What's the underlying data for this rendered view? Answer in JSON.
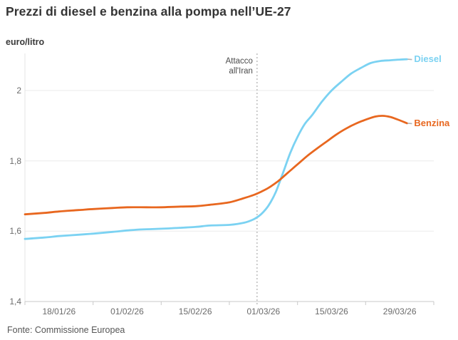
{
  "header": {
    "title": "Prezzi di diesel e benzina alla pompa nell’UE-27",
    "unit_label": "euro/litro"
  },
  "source": {
    "label": "Fonte: Commissione Europea"
  },
  "colors": {
    "diesel": "#7bd2f2",
    "benzina": "#e8671f",
    "grid": "#ebebeb",
    "axis_bottom": "#c9c9c9",
    "axis_left": "#e4e4e4",
    "tick_mark": "#c9c9c9",
    "tick_text": "#6b6b6b",
    "event_line": "#9b9b9b",
    "annotation_text": "#4c4c4c",
    "leader": "#b3b3b3",
    "title_text": "#343434",
    "source_text": "#565656"
  },
  "chart_data": {
    "type": "line",
    "title": "Prezzi di diesel e benzina alla pompa nell’UE-27",
    "ylabel": "euro/litro",
    "xlabel": "",
    "grid": "horizontal-only",
    "legend_position": "line-end-labels",
    "ylim": [
      1.4,
      2.105
    ],
    "x_domain_days": [
      0,
      84
    ],
    "x_tick_labels": [
      "18/01/26",
      "01/02/26",
      "15/02/26",
      "01/03/26",
      "15/03/26",
      "29/03/26"
    ],
    "x_tick_label_days": [
      7,
      21,
      35,
      49,
      63,
      77
    ],
    "x_axis_tick_days": [
      0,
      14,
      28,
      42,
      56,
      70,
      84
    ],
    "y_ticks": [
      {
        "label": "2",
        "value": 2.0
      },
      {
        "label": "1,8",
        "value": 1.8
      },
      {
        "label": "1,6",
        "value": 1.6
      },
      {
        "label": "1,4",
        "value": 1.4
      }
    ],
    "event": {
      "day": 47.7,
      "label": "Attacco all’Iran",
      "line1": "Attacco",
      "line2": "all'Iran"
    },
    "series": [
      {
        "name": "Diesel",
        "color": "#7bd2f2",
        "points": [
          [
            0,
            1.578
          ],
          [
            4,
            1.582
          ],
          [
            7,
            1.586
          ],
          [
            11,
            1.59
          ],
          [
            14,
            1.593
          ],
          [
            18,
            1.598
          ],
          [
            21,
            1.602
          ],
          [
            24,
            1.605
          ],
          [
            28,
            1.607
          ],
          [
            31,
            1.609
          ],
          [
            35,
            1.612
          ],
          [
            38,
            1.616
          ],
          [
            42,
            1.618
          ],
          [
            45,
            1.624
          ],
          [
            47,
            1.634
          ],
          [
            48.5,
            1.648
          ],
          [
            50,
            1.672
          ],
          [
            51.5,
            1.71
          ],
          [
            53,
            1.765
          ],
          [
            54.5,
            1.822
          ],
          [
            56,
            1.868
          ],
          [
            57.5,
            1.905
          ],
          [
            59,
            1.93
          ],
          [
            61,
            1.968
          ],
          [
            63,
            2.0
          ],
          [
            65,
            2.025
          ],
          [
            67,
            2.048
          ],
          [
            69,
            2.064
          ],
          [
            71,
            2.078
          ],
          [
            73,
            2.084
          ],
          [
            75,
            2.086
          ],
          [
            77,
            2.088
          ],
          [
            78.5,
            2.089
          ]
        ]
      },
      {
        "name": "Benzina",
        "color": "#e8671f",
        "points": [
          [
            0,
            1.648
          ],
          [
            4,
            1.652
          ],
          [
            7,
            1.656
          ],
          [
            11,
            1.66
          ],
          [
            14,
            1.663
          ],
          [
            18,
            1.666
          ],
          [
            21,
            1.668
          ],
          [
            25,
            1.668
          ],
          [
            28,
            1.668
          ],
          [
            32,
            1.67
          ],
          [
            35,
            1.671
          ],
          [
            38,
            1.675
          ],
          [
            42,
            1.682
          ],
          [
            45,
            1.694
          ],
          [
            47,
            1.703
          ],
          [
            48.5,
            1.712
          ],
          [
            50,
            1.723
          ],
          [
            52,
            1.742
          ],
          [
            54,
            1.766
          ],
          [
            56,
            1.79
          ],
          [
            58,
            1.814
          ],
          [
            60,
            1.835
          ],
          [
            62,
            1.855
          ],
          [
            64,
            1.875
          ],
          [
            66,
            1.892
          ],
          [
            68,
            1.906
          ],
          [
            70,
            1.917
          ],
          [
            72,
            1.926
          ],
          [
            73.5,
            1.928
          ],
          [
            75,
            1.925
          ],
          [
            76.5,
            1.918
          ],
          [
            78.5,
            1.907
          ]
        ]
      }
    ]
  }
}
